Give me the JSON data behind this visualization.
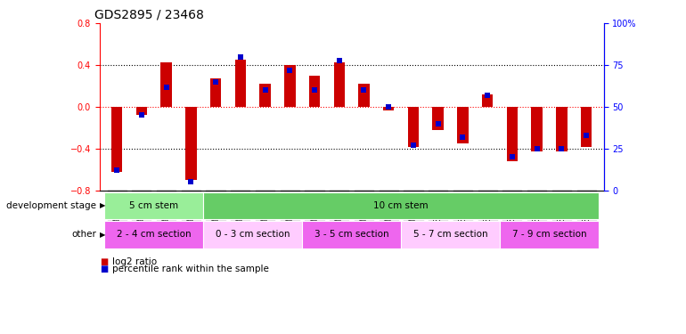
{
  "title": "GDS2895 / 23468",
  "samples": [
    "GSM35570",
    "GSM35571",
    "GSM35721",
    "GSM35725",
    "GSM35565",
    "GSM35567",
    "GSM35568",
    "GSM35569",
    "GSM35726",
    "GSM35727",
    "GSM35728",
    "GSM35729",
    "GSM35978",
    "GSM36004",
    "GSM36011",
    "GSM36012",
    "GSM36013",
    "GSM36014",
    "GSM36015",
    "GSM36016"
  ],
  "log2_ratio": [
    -0.62,
    -0.08,
    0.43,
    -0.7,
    0.27,
    0.45,
    0.22,
    0.4,
    0.3,
    0.43,
    0.22,
    -0.03,
    -0.38,
    -0.22,
    -0.35,
    0.12,
    -0.52,
    -0.43,
    -0.43,
    -0.38
  ],
  "percentile": [
    12,
    45,
    62,
    5,
    65,
    80,
    60,
    72,
    60,
    78,
    60,
    50,
    27,
    40,
    32,
    57,
    20,
    25,
    25,
    33
  ],
  "bar_color": "#cc0000",
  "dot_color": "#0000cc",
  "ylim": [
    -0.8,
    0.8
  ],
  "ylim2": [
    0,
    100
  ],
  "yticks": [
    -0.8,
    -0.4,
    0.0,
    0.4,
    0.8
  ],
  "yticks2": [
    0,
    25,
    50,
    75,
    100
  ],
  "ytick_labels2": [
    "0",
    "25",
    "50",
    "75",
    "100%"
  ],
  "hlines_dotted": [
    0.4,
    -0.4
  ],
  "hline_red": 0.0,
  "dev_stage_groups": [
    {
      "label": "5 cm stem",
      "start": 0,
      "end": 4,
      "color": "#99ee99"
    },
    {
      "label": "10 cm stem",
      "start": 4,
      "end": 20,
      "color": "#66cc66"
    }
  ],
  "other_groups": [
    {
      "label": "2 - 4 cm section",
      "start": 0,
      "end": 4,
      "color": "#ee66ee"
    },
    {
      "label": "0 - 3 cm section",
      "start": 4,
      "end": 8,
      "color": "#ffccff"
    },
    {
      "label": "3 - 5 cm section",
      "start": 8,
      "end": 12,
      "color": "#ee66ee"
    },
    {
      "label": "5 - 7 cm section",
      "start": 12,
      "end": 16,
      "color": "#ffccff"
    },
    {
      "label": "7 - 9 cm section",
      "start": 16,
      "end": 20,
      "color": "#ee66ee"
    }
  ],
  "dev_stage_label": "development stage",
  "other_label": "other",
  "legend_items": [
    {
      "label": "log2 ratio",
      "color": "#cc0000"
    },
    {
      "label": "percentile rank within the sample",
      "color": "#0000cc"
    }
  ],
  "background_color": "#ffffff",
  "title_fontsize": 10,
  "tick_fontsize": 7,
  "bar_width": 0.45,
  "dot_size": 18
}
